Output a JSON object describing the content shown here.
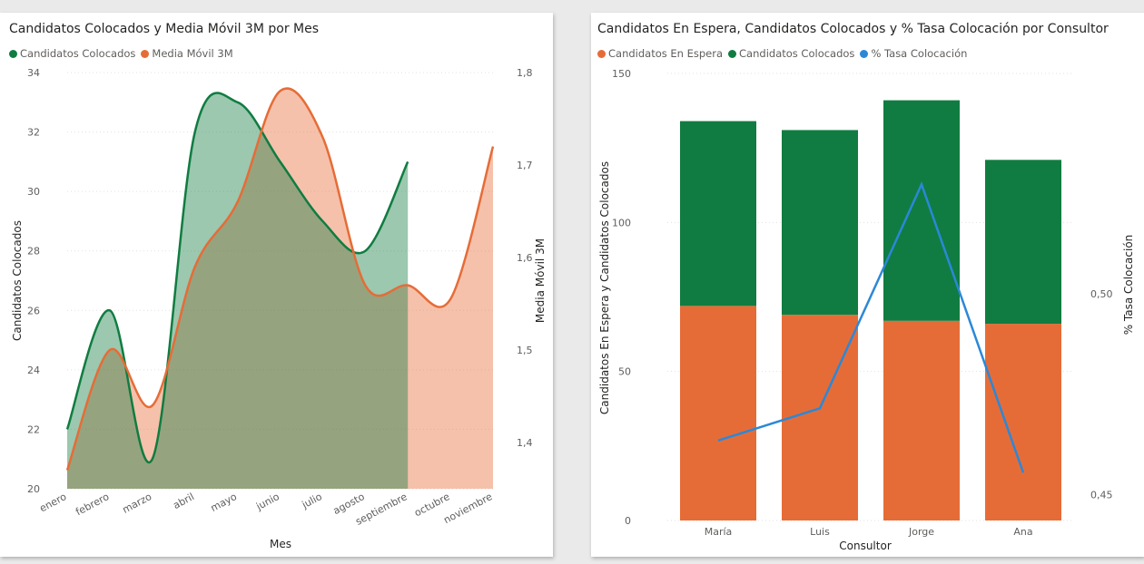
{
  "chart_data": [
    {
      "type": "area",
      "title": "Candidatos Colocados y Media Móvil 3M por Mes",
      "xlabel": "Mes",
      "ylabel": "Candidatos Colocados",
      "y2label": "Media Móvil 3M",
      "categories": [
        "enero",
        "febrero",
        "marzo",
        "abril",
        "mayo",
        "junio",
        "julio",
        "agosto",
        "septiembre",
        "octubre",
        "noviembre"
      ],
      "ylim": [
        20,
        34
      ],
      "yticks": [
        20,
        22,
        24,
        26,
        28,
        30,
        32,
        34
      ],
      "y2lim": [
        1.35,
        1.8
      ],
      "y2ticks": [
        "1,4",
        "1,5",
        "1,6",
        "1,7",
        "1,8"
      ],
      "legend_position": "top-left",
      "series": [
        {
          "name": "Candidatos Colocados",
          "axis": "left",
          "color": "#107c41",
          "values": [
            22,
            26,
            21,
            32,
            33,
            31,
            29,
            28,
            31,
            null,
            null
          ]
        },
        {
          "name": "Media Móvil 3M",
          "axis": "right",
          "color": "#e66c37",
          "values": [
            1.37,
            1.5,
            1.44,
            1.59,
            1.66,
            1.78,
            1.73,
            1.57,
            1.57,
            1.555,
            1.72
          ]
        }
      ]
    },
    {
      "type": "bar",
      "stacked": true,
      "title": "Candidatos En Espera, Candidatos Colocados y % Tasa Colocación por Consultor",
      "xlabel": "Consultor",
      "ylabel": "Candidatos En Espera y Candidatos Colocados",
      "y2label": "% Tasa Colocación",
      "categories": [
        "María",
        "Luis",
        "Jorge",
        "Ana"
      ],
      "ylim": [
        0,
        150
      ],
      "yticks": [
        0,
        50,
        100,
        150
      ],
      "y2lim": [
        0.4436,
        0.5548
      ],
      "y2ticks": [
        "0,45",
        "0,50"
      ],
      "legend_position": "top-left",
      "series": [
        {
          "name": "Candidatos En Espera",
          "type": "bar",
          "color": "#e66c37",
          "values": [
            72,
            69,
            67,
            66
          ]
        },
        {
          "name": "Candidatos Colocados",
          "type": "bar",
          "color": "#107c41",
          "values": [
            62,
            62,
            74,
            55
          ]
        },
        {
          "name": "% Tasa Colocación",
          "type": "line",
          "axis": "right",
          "color": "#2b88d8",
          "values": [
            0.4635,
            0.4715,
            0.5272,
            0.4555
          ]
        }
      ]
    }
  ]
}
